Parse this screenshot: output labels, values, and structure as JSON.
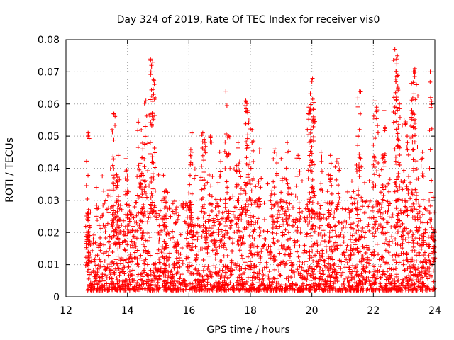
{
  "chart_data": {
    "type": "scatter",
    "title": "Day 324 of 2019, Rate Of TEC Index for receiver vis0",
    "xlabel": "GPS time / hours",
    "ylabel": "ROTI / TECUs",
    "xlim": [
      12,
      24
    ],
    "ylim": [
      0,
      0.08
    ],
    "x_ticks": [
      "12",
      "14",
      "16",
      "18",
      "20",
      "22",
      "24"
    ],
    "y_ticks": [
      "0",
      "0.01",
      "0.02",
      "0.03",
      "0.04",
      "0.05",
      "0.06",
      "0.07",
      "0.08"
    ],
    "grid": true,
    "marker": "+",
    "color": "#ff0000",
    "series": [
      {
        "name": "ROTI",
        "points": [
          [
            12.72,
            0.051
          ],
          [
            12.7,
            0.026
          ],
          [
            12.72,
            0.02
          ],
          [
            13.55,
            0.057
          ],
          [
            13.5,
            0.052
          ],
          [
            13.7,
            0.044
          ],
          [
            13.95,
            0.043
          ],
          [
            13.65,
            0.038
          ],
          [
            14.35,
            0.055
          ],
          [
            14.45,
            0.052
          ],
          [
            14.5,
            0.046
          ],
          [
            14.6,
            0.061
          ],
          [
            14.75,
            0.074
          ],
          [
            14.78,
            0.072
          ],
          [
            14.82,
            0.073
          ],
          [
            14.85,
            0.063
          ],
          [
            15.25,
            0.033
          ],
          [
            15.25,
            0.028
          ],
          [
            16.1,
            0.051
          ],
          [
            16.05,
            0.044
          ],
          [
            16.5,
            0.049
          ],
          [
            16.45,
            0.051
          ],
          [
            16.7,
            0.05
          ],
          [
            17.0,
            0.045
          ],
          [
            17.2,
            0.064
          ],
          [
            17.3,
            0.05
          ],
          [
            17.6,
            0.048
          ],
          [
            17.65,
            0.042
          ],
          [
            17.85,
            0.061
          ],
          [
            17.9,
            0.058
          ],
          [
            17.95,
            0.055
          ],
          [
            18.05,
            0.052
          ],
          [
            18.3,
            0.046
          ],
          [
            18.7,
            0.033
          ],
          [
            18.8,
            0.046
          ],
          [
            19.0,
            0.043
          ],
          [
            19.2,
            0.048
          ],
          [
            19.55,
            0.044
          ],
          [
            19.9,
            0.059
          ],
          [
            19.95,
            0.058
          ],
          [
            20.0,
            0.067
          ],
          [
            20.02,
            0.068
          ],
          [
            20.05,
            0.056
          ],
          [
            20.3,
            0.045
          ],
          [
            20.6,
            0.044
          ],
          [
            20.85,
            0.043
          ],
          [
            21.3,
            0.036
          ],
          [
            21.5,
            0.05
          ],
          [
            21.55,
            0.064
          ],
          [
            21.45,
            0.041
          ],
          [
            22.05,
            0.061
          ],
          [
            22.1,
            0.059
          ],
          [
            22.35,
            0.058
          ],
          [
            22.3,
            0.043
          ],
          [
            22.7,
            0.077
          ],
          [
            22.75,
            0.074
          ],
          [
            22.78,
            0.075
          ],
          [
            22.8,
            0.065
          ],
          [
            22.85,
            0.06
          ],
          [
            23.0,
            0.055
          ],
          [
            23.1,
            0.05
          ],
          [
            23.25,
            0.058
          ],
          [
            23.3,
            0.07
          ],
          [
            23.35,
            0.071
          ],
          [
            23.4,
            0.066
          ],
          [
            23.6,
            0.045
          ],
          [
            23.85,
            0.07
          ],
          [
            23.95,
            0.031
          ]
        ],
        "dense_band": {
          "x_range": [
            12.7,
            24
          ],
          "typical_range": [
            0.002,
            0.03
          ],
          "note": "continuous dense scatter of points between the listed outliers"
        }
      }
    ]
  }
}
